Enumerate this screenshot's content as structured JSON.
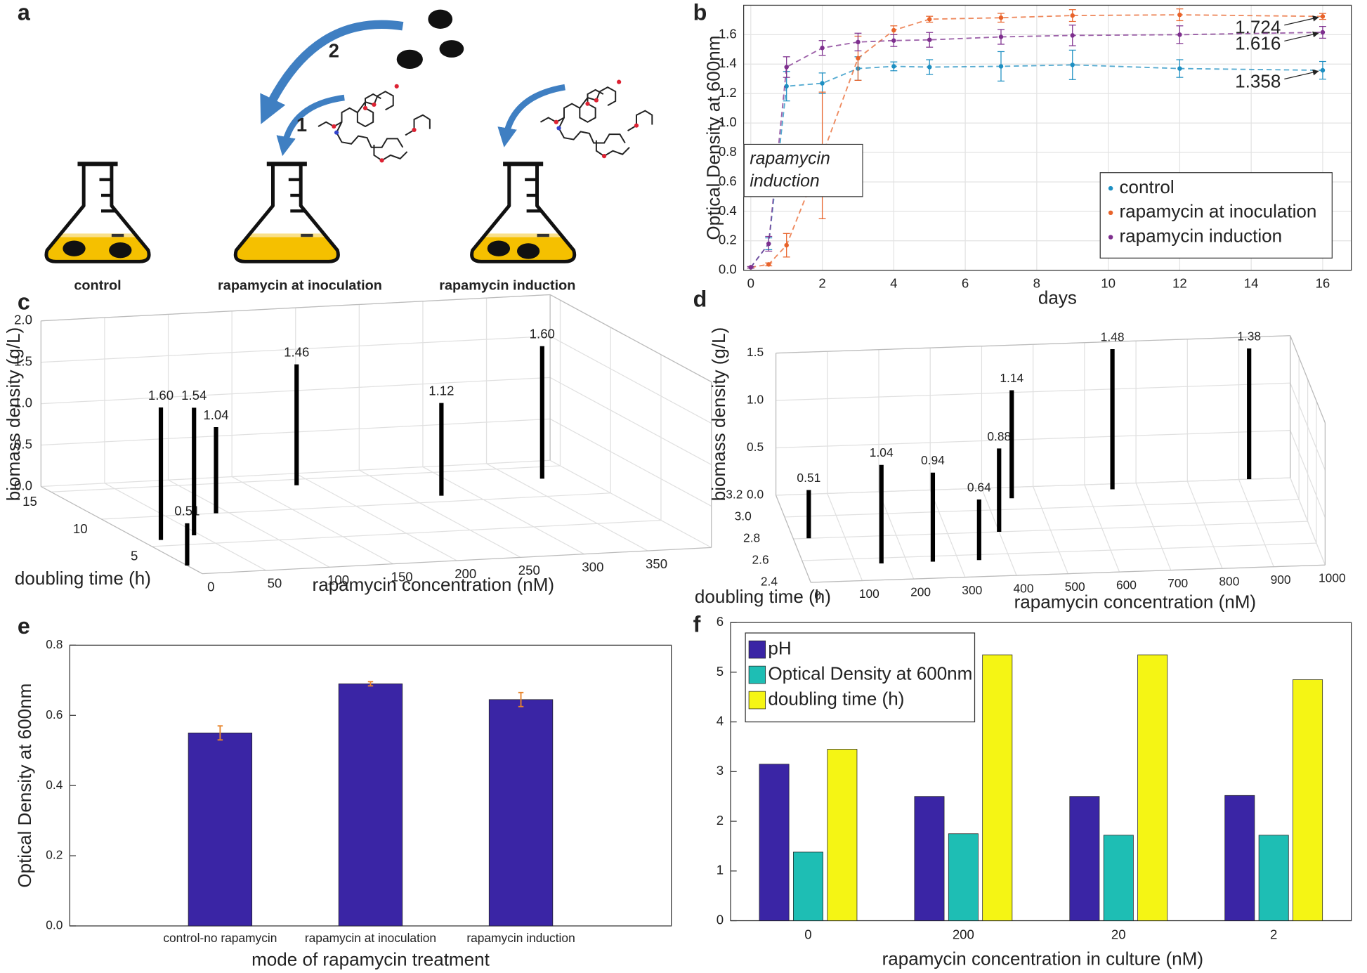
{
  "diagram": {
    "panel": "a",
    "flasks": [
      "control",
      "rapamycin at inoculation",
      "rapamycin induction"
    ],
    "steps": [
      "1",
      "2"
    ]
  },
  "chart_data": [
    {
      "panel": "b",
      "type": "line",
      "xlabel": "days",
      "ylabel": "Optical Density at 600nm",
      "x": [
        0,
        0.5,
        1,
        2,
        3,
        4,
        5,
        7,
        9,
        12,
        16
      ],
      "series": [
        {
          "name": "control",
          "color": "#1d8fc2",
          "values": [
            0.02,
            0.18,
            1.25,
            1.27,
            1.37,
            1.385,
            1.38,
            1.385,
            1.395,
            1.37,
            1.358
          ],
          "errors": [
            0.005,
            0.04,
            0.1,
            0.07,
            0.08,
            0.03,
            0.05,
            0.1,
            0.1,
            0.06,
            0.06
          ]
        },
        {
          "name": "rapamycin at inoculation",
          "color": "#e8632a",
          "values": [
            0.02,
            0.04,
            0.17,
            0.78,
            1.44,
            1.63,
            1.705,
            1.715,
            1.73,
            1.735,
            1.724
          ],
          "errors": [
            0.005,
            0.01,
            0.08,
            0.43,
            0.15,
            0.03,
            0.02,
            0.03,
            0.04,
            0.04,
            0.02
          ]
        },
        {
          "name": "rapamycin induction",
          "color": "#7e2f8e",
          "values": [
            0.02,
            0.18,
            1.38,
            1.51,
            1.55,
            1.56,
            1.565,
            1.585,
            1.595,
            1.6,
            1.616
          ],
          "errors": [
            0.005,
            0.05,
            0.07,
            0.05,
            0.06,
            0.04,
            0.05,
            0.05,
            0.07,
            0.06,
            0.04
          ]
        }
      ],
      "xlim": [
        -0.2,
        16.8
      ],
      "xticks": [
        0,
        2,
        4,
        6,
        8,
        10,
        12,
        14,
        16
      ],
      "ylim": [
        0,
        1.8
      ],
      "yticks": [
        {
          "value": 0,
          "label": "0.0"
        },
        0.2,
        0.4,
        0.6,
        0.8,
        {
          "value": 1,
          "label": "1.0"
        },
        1.2,
        1.4,
        1.6
      ],
      "grid": true,
      "legend": "lower right",
      "annotation": "rapamycin induction"
    },
    {
      "panel": "c",
      "type": "stem3d",
      "xlabel": "rapamycin concentration (nM)",
      "ylabel": "doubling time (h)",
      "zlabel": "biomass density (g/L)",
      "x": [
        15,
        0,
        45,
        90,
        185,
        275,
        370
      ],
      "y": [
        6,
        1.5,
        6.5,
        10,
        14,
        11,
        13
      ],
      "values": [
        1.6,
        0.51,
        1.54,
        1.04,
        1.46,
        1.12,
        1.6
      ],
      "value_labels": [
        "1.60",
        "0.51",
        "1.54",
        "1.04",
        "1.46",
        "1.12",
        "1.60"
      ],
      "color": "#000000",
      "xlim": [
        0,
        400
      ],
      "xticks": [
        0,
        50,
        100,
        150,
        200,
        250,
        300,
        350
      ],
      "ylim": [
        0,
        16
      ],
      "yticks": [
        5,
        10,
        15
      ],
      "zlim": [
        0,
        2
      ],
      "zticks": [
        {
          "value": 0,
          "label": "0.0"
        },
        0.5,
        {
          "value": 1,
          "label": "1.0"
        },
        1.5,
        {
          "value": 2,
          "label": "2.0"
        }
      ],
      "grid": true
    },
    {
      "panel": "d",
      "type": "stem3d",
      "xlabel": "rapamycin concentration (nM)",
      "ylabel": "doubling time (h)",
      "zlabel": "biomass density (g/L)",
      "x": [
        30,
        150,
        250,
        340,
        400,
        450,
        650,
        920
      ],
      "y": [
        2.8,
        2.55,
        2.55,
        2.55,
        2.8,
        3.1,
        3.15,
        3.2
      ],
      "values": [
        0.51,
        1.04,
        0.94,
        0.64,
        0.88,
        1.14,
        1.48,
        1.38
      ],
      "color": "#000000",
      "xlim": [
        0,
        1000
      ],
      "xticks": [
        0,
        100,
        200,
        300,
        400,
        500,
        600,
        700,
        800,
        900,
        1000
      ],
      "ylim": [
        2.4,
        3.2
      ],
      "yticks": [
        2.4,
        2.6,
        2.8,
        {
          "value": 3,
          "label": "3.0"
        },
        3.2
      ],
      "zlim": [
        0,
        1.5
      ],
      "zticks": [
        {
          "value": 0,
          "label": "0.0"
        },
        0.5,
        {
          "value": 1,
          "label": "1.0"
        },
        1.5
      ],
      "grid": true
    },
    {
      "panel": "e",
      "type": "bar",
      "xlabel": "mode of rapamycin treatment",
      "ylabel": "Optical Density at 600nm",
      "categories": [
        "control-no rapamycin",
        "rapamycin at inoculation",
        "rapamycin induction"
      ],
      "values": [
        0.55,
        0.69,
        0.645
      ],
      "errors": [
        0.02,
        0.006,
        0.02
      ],
      "color": "#3a25a5",
      "error_color": "#e8842a",
      "ylim": [
        0,
        0.8
      ],
      "yticks": [
        {
          "value": 0,
          "label": "0.0"
        },
        0.2,
        0.4,
        0.6,
        0.8
      ],
      "grid": false
    },
    {
      "panel": "f",
      "type": "grouped_bar",
      "xlabel": "rapamycin concentration in culture (nM)",
      "categories": [
        "0",
        "200",
        "20",
        "2"
      ],
      "series": [
        {
          "name": "pH",
          "color": "#3a25a5",
          "values": [
            3.15,
            2.5,
            2.5,
            2.52
          ]
        },
        {
          "name": "Optical Density at 600nm",
          "color": "#1ebeb4",
          "values": [
            1.38,
            1.75,
            1.72,
            1.72
          ]
        },
        {
          "name": "doubling time (h)",
          "color": "#f5f514",
          "values": [
            3.45,
            5.35,
            5.35,
            4.85
          ]
        }
      ],
      "ylim": [
        0,
        6
      ],
      "yticks": [
        0,
        1,
        2,
        3,
        4,
        5,
        6
      ],
      "grid": false,
      "legend": "upper left"
    }
  ]
}
